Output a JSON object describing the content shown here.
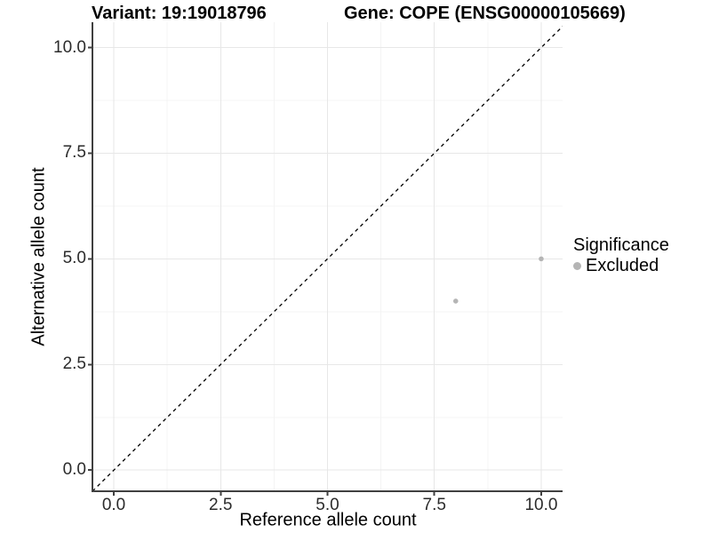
{
  "title": {
    "variant": "Variant: 19:19018796",
    "gene": "Gene: COPE (ENSG00000105669)"
  },
  "axes": {
    "x": {
      "label": "Reference allele count",
      "tick_labels": [
        "0.0",
        "2.5",
        "5.0",
        "7.5",
        "10.0"
      ],
      "tick_values": [
        0,
        2.5,
        5,
        7.5,
        10
      ]
    },
    "y": {
      "label": "Alternative allele count",
      "tick_labels": [
        "0.0",
        "2.5",
        "5.0",
        "7.5",
        "10.0"
      ],
      "tick_values": [
        0,
        2.5,
        5,
        7.5,
        10
      ]
    }
  },
  "legend": {
    "title": "Significance",
    "items": [
      {
        "label": "Excluded",
        "color": "#b5b5b5"
      }
    ]
  },
  "chart_data": {
    "type": "scatter",
    "title": "Variant: 19:19018796    Gene: COPE (ENSG00000105669)",
    "xlabel": "Reference allele count",
    "ylabel": "Alternative allele count",
    "xlim": [
      -0.5,
      10.5
    ],
    "ylim": [
      -0.5,
      10.6
    ],
    "x_ticks": [
      0,
      2.5,
      5,
      7.5,
      10
    ],
    "y_ticks": [
      0,
      2.5,
      5,
      7.5,
      10
    ],
    "x_minor_ticks": [
      1.25,
      3.75,
      6.25,
      8.75
    ],
    "y_minor_ticks": [
      1.25,
      3.75,
      6.25,
      8.75
    ],
    "grid": true,
    "legend_position": "right",
    "series": [
      {
        "name": "Excluded",
        "color": "#b5b5b5",
        "marker": "circle",
        "point_radius": 2.8,
        "points": [
          {
            "x": 8,
            "y": 4
          },
          {
            "x": 10,
            "y": 5
          }
        ]
      }
    ],
    "reference_line": {
      "kind": "identity y=x",
      "style": "dashed",
      "color": "#000000",
      "from": [
        -0.5,
        -0.5
      ],
      "to": [
        10.6,
        10.6
      ]
    }
  },
  "colors": {
    "background": "#ffffff",
    "axis_line": "#404040",
    "tick_text": "#2b2b2b",
    "grid_major": "#e7e7e7",
    "grid_minor": "#f4f4f4",
    "point": "#b5b5b5",
    "title_text": "#000000"
  }
}
